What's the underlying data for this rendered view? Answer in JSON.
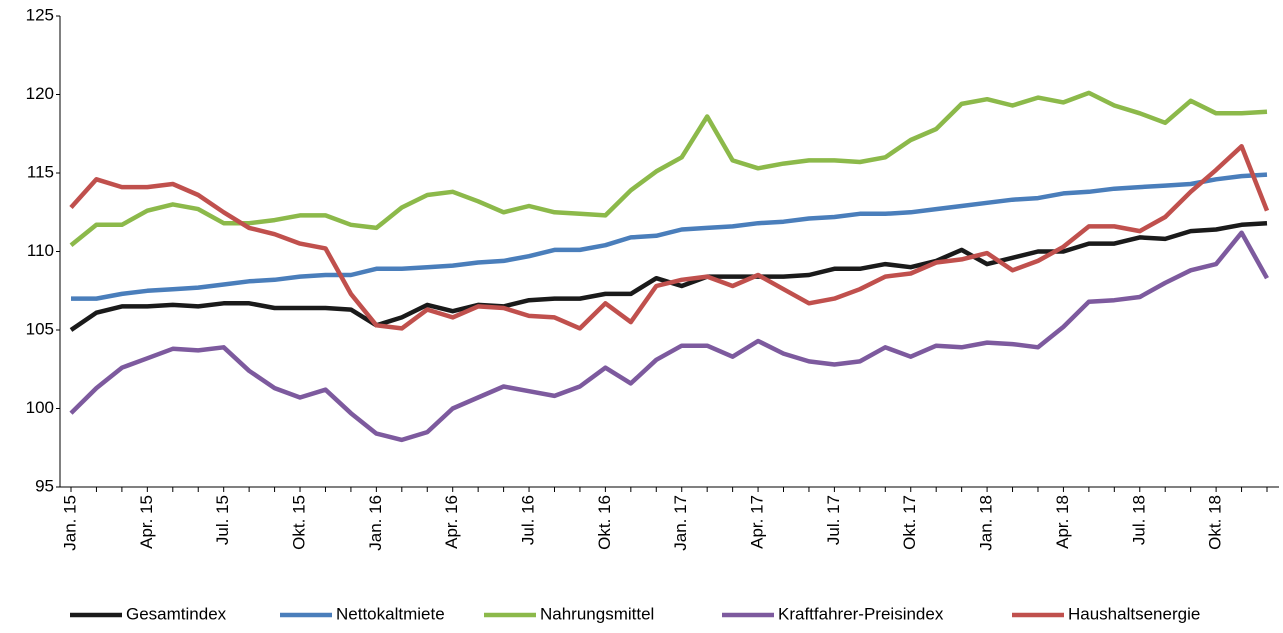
{
  "chart_data": {
    "type": "line",
    "categories": [
      "Jan. 15",
      null,
      null,
      "Apr. 15",
      null,
      null,
      "Jul. 15",
      null,
      null,
      "Okt. 15",
      null,
      null,
      "Jan. 16",
      null,
      null,
      "Apr. 16",
      null,
      null,
      "Jul. 16",
      null,
      null,
      "Okt. 16",
      null,
      null,
      "Jan. 17",
      null,
      null,
      "Apr. 17",
      null,
      null,
      "Jul. 17",
      null,
      null,
      "Okt. 17",
      null,
      null,
      "Jan. 18",
      null,
      null,
      "Apr. 18",
      null,
      null,
      "Jul. 18",
      null,
      null,
      "Okt. 18",
      null,
      null
    ],
    "ylim": [
      95,
      125
    ],
    "yticks": [
      95,
      100,
      105,
      110,
      115,
      120,
      125
    ],
    "grid": false,
    "legend": "bottom",
    "series": [
      {
        "name": "Gesamtindex",
        "color": "#1a1a1a",
        "values": [
          105.0,
          106.1,
          106.5,
          106.5,
          106.6,
          106.5,
          106.7,
          106.7,
          106.4,
          106.4,
          106.4,
          106.3,
          105.3,
          105.8,
          106.6,
          106.2,
          106.6,
          106.5,
          106.9,
          107.0,
          107.0,
          107.3,
          107.3,
          108.3,
          107.8,
          108.4,
          108.4,
          108.4,
          108.4,
          108.5,
          108.9,
          108.9,
          109.2,
          109.0,
          109.4,
          110.1,
          109.2,
          109.6,
          110.0,
          110.0,
          110.5,
          110.5,
          110.9,
          110.8,
          111.3,
          111.4,
          111.7,
          111.8
        ]
      },
      {
        "name": "Nettokaltmiete",
        "color": "#4a7ebb",
        "values": [
          107.0,
          107.0,
          107.3,
          107.5,
          107.6,
          107.7,
          107.9,
          108.1,
          108.2,
          108.4,
          108.5,
          108.5,
          108.9,
          108.9,
          109.0,
          109.1,
          109.3,
          109.4,
          109.7,
          110.1,
          110.1,
          110.4,
          110.9,
          111.0,
          111.4,
          111.5,
          111.6,
          111.8,
          111.9,
          112.1,
          112.2,
          112.4,
          112.4,
          112.5,
          112.7,
          112.9,
          113.1,
          113.3,
          113.4,
          113.7,
          113.8,
          114.0,
          114.1,
          114.2,
          114.3,
          114.6,
          114.8,
          114.9
        ]
      },
      {
        "name": "Nahrungsmittel",
        "color": "#8cb94a",
        "values": [
          110.4,
          111.7,
          111.7,
          112.6,
          113.0,
          112.7,
          111.8,
          111.8,
          112.0,
          112.3,
          112.3,
          111.7,
          111.5,
          112.8,
          113.6,
          113.8,
          113.2,
          112.5,
          112.9,
          112.5,
          112.4,
          112.3,
          113.9,
          115.1,
          116.0,
          118.6,
          115.8,
          115.3,
          115.6,
          115.8,
          115.8,
          115.7,
          116.0,
          117.1,
          117.8,
          119.4,
          119.7,
          119.3,
          119.8,
          119.5,
          120.1,
          119.3,
          118.8,
          118.2,
          119.6,
          118.8,
          118.8,
          118.9
        ]
      },
      {
        "name": "Kraftfahrer-Preisindex",
        "color": "#7d5a9e",
        "values": [
          99.7,
          101.3,
          102.6,
          103.2,
          103.8,
          103.7,
          103.9,
          102.4,
          101.3,
          100.7,
          101.2,
          99.7,
          98.4,
          98.0,
          98.5,
          100.0,
          100.7,
          101.4,
          101.1,
          100.8,
          101.4,
          102.6,
          101.6,
          103.1,
          104.0,
          104.0,
          103.3,
          104.3,
          103.5,
          103.0,
          102.8,
          103.0,
          103.9,
          103.3,
          104.0,
          103.9,
          104.2,
          104.1,
          103.9,
          105.2,
          106.8,
          106.9,
          107.1,
          108.0,
          108.8,
          109.2,
          111.2,
          108.3
        ]
      },
      {
        "name": "Haushaltsenergie",
        "color": "#c0504d",
        "values": [
          112.8,
          114.6,
          114.1,
          114.1,
          114.3,
          113.6,
          112.5,
          111.5,
          111.1,
          110.5,
          110.2,
          107.3,
          105.3,
          105.1,
          106.3,
          105.8,
          106.5,
          106.4,
          105.9,
          105.8,
          105.1,
          106.7,
          105.5,
          107.8,
          108.2,
          108.4,
          107.8,
          108.5,
          107.6,
          106.7,
          107.0,
          107.6,
          108.4,
          108.6,
          109.3,
          109.5,
          109.9,
          108.8,
          109.4,
          110.3,
          111.6,
          111.6,
          111.3,
          112.2,
          113.8,
          115.2,
          116.7,
          112.6
        ]
      }
    ]
  }
}
